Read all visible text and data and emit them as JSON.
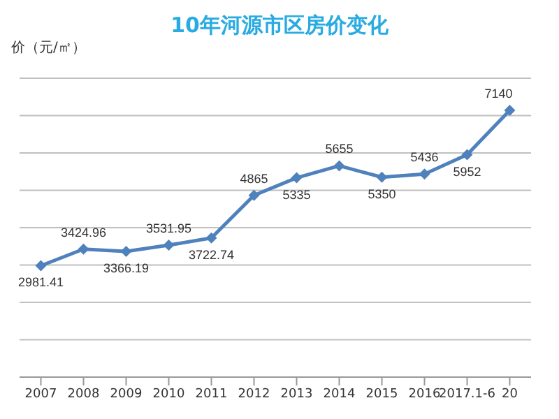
{
  "chart_data": {
    "type": "line",
    "title": "10年河源市区房价变化",
    "ylabel": "价（元/㎡）",
    "categories": [
      "2007",
      "2008",
      "2009",
      "2010",
      "2011",
      "2012",
      "2013",
      "2014",
      "2015",
      "2016",
      "2017.1-6",
      "20"
    ],
    "series": [
      {
        "color": "#4f81bd",
        "values": [
          2981.41,
          3424.96,
          3366.19,
          3531.95,
          3722.74,
          4865,
          5335,
          5655,
          5350,
          5436,
          5952,
          7140
        ]
      }
    ],
    "ylim": [
      0,
      8000
    ],
    "yticks": [
      {
        "value": 0,
        "label": null
      },
      {
        "value": 1000,
        "label": null
      },
      {
        "value": 2000,
        "label": null
      },
      {
        "value": 3000,
        "label": null
      },
      {
        "value": 4000,
        "label": null
      },
      {
        "value": 5000,
        "label": null
      },
      {
        "value": 6000,
        "label": null
      },
      {
        "value": 7000,
        "label": null
      },
      {
        "value": 8000,
        "label": null
      }
    ],
    "tick_labels": "x",
    "grid": "y",
    "marker": "diamond",
    "line_style": "solid",
    "data_labels": true,
    "legend": false
  }
}
